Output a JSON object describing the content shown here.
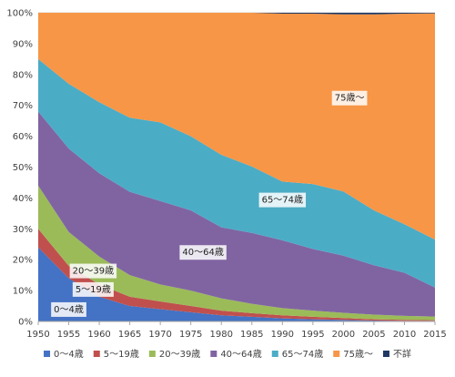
{
  "chart_data": {
    "type": "area",
    "stacking": "percent",
    "x": [
      1950,
      1955,
      1960,
      1965,
      1970,
      1975,
      1980,
      1985,
      1990,
      1995,
      2000,
      2005,
      2010,
      2015
    ],
    "x_ticks": [
      "1950",
      "1955",
      "1960",
      "1965",
      "1970",
      "1975",
      "1980",
      "1985",
      "1990",
      "1995",
      "2000",
      "2005",
      "2010",
      "2015"
    ],
    "ylim": [
      0,
      100
    ],
    "y_ticks": [
      "0%",
      "10%",
      "20%",
      "30%",
      "40%",
      "50%",
      "60%",
      "70%",
      "80%",
      "90%",
      "100%"
    ],
    "grid": "horizontal",
    "legend_position": "bottom",
    "series": [
      {
        "name": "0〜4歳",
        "color": "#4472C4",
        "values": [
          24,
          14,
          8,
          5,
          4,
          3,
          2,
          1.5,
          1,
          0.7,
          0.5,
          0.3,
          0.2,
          0.2
        ]
      },
      {
        "name": "5〜19歳",
        "color": "#C0504D",
        "values": [
          6,
          4,
          4,
          3,
          2.5,
          2,
          1.5,
          1.2,
          1,
          0.8,
          0.6,
          0.4,
          0.3,
          0.2
        ]
      },
      {
        "name": "20〜39歳",
        "color": "#9BBB59",
        "values": [
          14,
          11,
          9,
          7,
          5.5,
          5,
          4,
          3,
          2.3,
          2,
          1.7,
          1.5,
          1.3,
          1.2
        ]
      },
      {
        "name": "40〜64歳",
        "color": "#8064A2",
        "values": [
          24,
          27,
          27,
          27,
          27,
          26,
          23,
          23,
          22,
          20,
          18.5,
          16,
          14,
          9.4
        ]
      },
      {
        "name": "65〜74歳",
        "color": "#4BACC6",
        "values": [
          17,
          21,
          23,
          24,
          25.5,
          24,
          23.5,
          21.5,
          19,
          21,
          20.8,
          17.8,
          15.7,
          15.5
        ]
      },
      {
        "name": "75歳〜",
        "color": "#F79646",
        "values": [
          15,
          23,
          29,
          34,
          35.5,
          40,
          46,
          49.8,
          54.4,
          55.2,
          57.4,
          63.5,
          68.2,
          73.3
        ]
      },
      {
        "name": "不詳",
        "color": "#1F3864",
        "values": [
          0,
          0,
          0,
          0,
          0,
          0,
          0,
          0,
          0.3,
          0.3,
          0.5,
          0.5,
          0.3,
          0.2
        ]
      }
    ],
    "annotations": [
      {
        "series": "0〜4歳",
        "text": "0〜4歳",
        "x": 1955,
        "y": 4
      },
      {
        "series": "5〜19歳",
        "text": "5〜19歳",
        "x": 1959,
        "y": 10.5
      },
      {
        "series": "20〜39歳",
        "text": "20〜39歳",
        "x": 1959,
        "y": 16.5
      },
      {
        "series": "40〜64歳",
        "text": "40〜64歳",
        "x": 1977,
        "y": 22.5
      },
      {
        "series": "65〜74歳",
        "text": "65〜74歳",
        "x": 1990,
        "y": 39.5
      },
      {
        "series": "75歳〜",
        "text": "75歳〜",
        "x": 2001,
        "y": 72.5
      }
    ]
  }
}
